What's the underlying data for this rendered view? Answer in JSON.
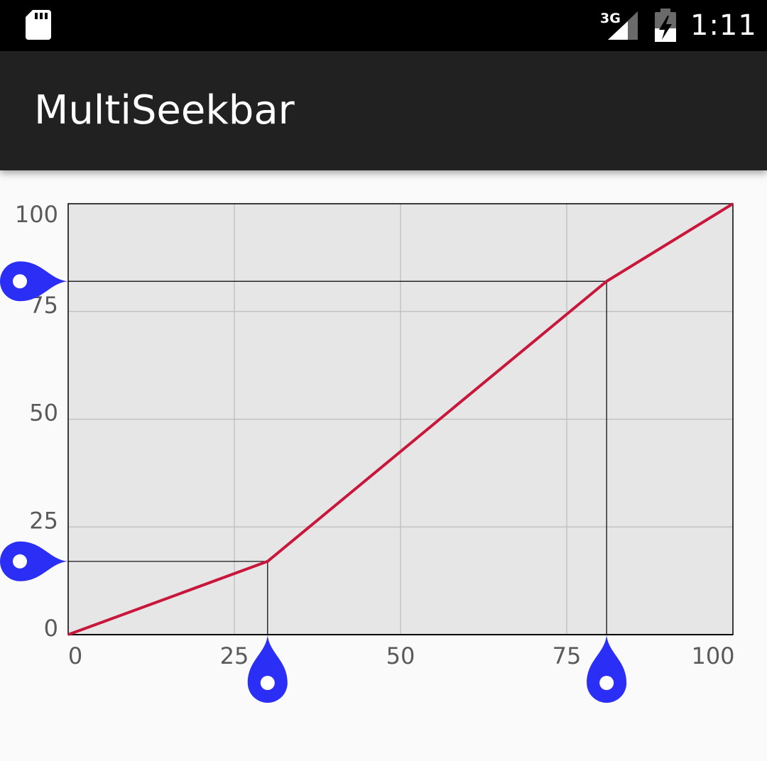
{
  "status_bar": {
    "network": "3G",
    "time": "1:11",
    "icons": [
      "sd-card-icon",
      "signal-icon",
      "battery-charging-icon"
    ]
  },
  "app_bar": {
    "title": "MultiSeekbar"
  },
  "colors": {
    "line": "#c8173a",
    "thumb": "#2b2ef5",
    "plot_bg": "#e6e6e6",
    "grid": "#bcbcbc",
    "guide": "#000000",
    "app_bar": "#212121"
  },
  "chart_data": {
    "type": "line",
    "x": [
      0,
      30,
      81,
      100
    ],
    "y": [
      0,
      17,
      82,
      100
    ],
    "xlim": [
      0,
      100
    ],
    "ylim": [
      0,
      100
    ],
    "x_ticks": [
      "0",
      "25",
      "50",
      "75",
      "100"
    ],
    "y_ticks": [
      "0",
      "25",
      "50",
      "75",
      "100"
    ],
    "grid": true,
    "control_points": [
      {
        "x": 30,
        "y": 17
      },
      {
        "x": 81,
        "y": 82
      }
    ]
  }
}
